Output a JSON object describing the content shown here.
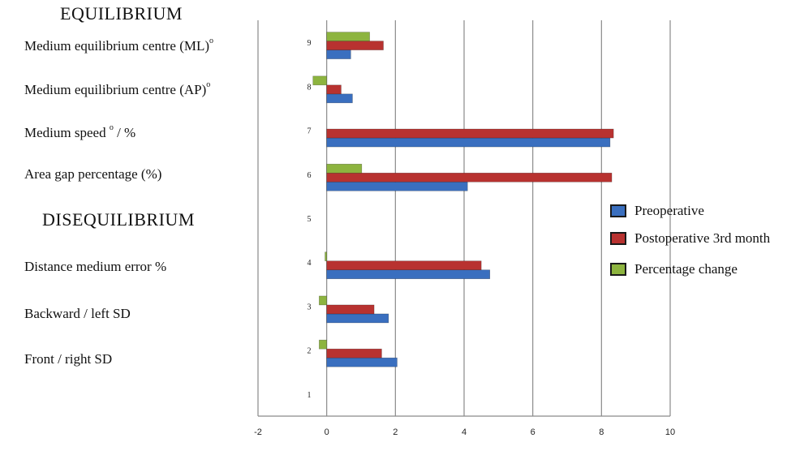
{
  "headings": {
    "equilibrium": "EQUILIBRIUM",
    "disequilibrium": "DISEQUILIBRIUM"
  },
  "row_labels": [
    {
      "text": "Medium equilibrium centre (ML)",
      "sup": "o"
    },
    {
      "text": "Medium equilibrium centre  (AP)",
      "sup": "o"
    },
    {
      "text": "Medium speed ",
      "sup": "o",
      "suffix": " / %"
    },
    {
      "text": "Area gap percentage (%)"
    },
    {
      "text": "Distance medium error %"
    },
    {
      "text": "Backward / left SD"
    },
    {
      "text": "Front / right SD"
    }
  ],
  "legend": [
    {
      "label": "Preoperative",
      "color": "#3a6fbf"
    },
    {
      "label": "Postoperative 3rd month",
      "color": "#b83230"
    },
    {
      "label": "Percentage change",
      "color": "#8db43f"
    }
  ],
  "chart_data": {
    "type": "bar",
    "orientation": "horizontal",
    "categories": [
      "1",
      "2",
      "3",
      "4",
      "5",
      "6",
      "7",
      "8",
      "9"
    ],
    "series": [
      {
        "name": "Preoperative",
        "color": "#3a6fbf",
        "values": [
          0,
          2.05,
          1.8,
          4.75,
          0,
          4.1,
          8.25,
          0.75,
          0.7
        ]
      },
      {
        "name": "Postoperative 3rd month",
        "color": "#b83230",
        "values": [
          0,
          1.6,
          1.38,
          4.5,
          0,
          8.3,
          8.35,
          0.42,
          1.65
        ]
      },
      {
        "name": "Percentage change",
        "color": "#8db43f",
        "values": [
          0,
          -0.22,
          -0.22,
          -0.05,
          0,
          1.02,
          0,
          -0.4,
          1.25
        ]
      }
    ],
    "x_ticks": [
      "-2",
      "0",
      "2",
      "4",
      "6",
      "8",
      "10"
    ],
    "xlim": [
      -2,
      10
    ],
    "grid": true,
    "legend_position": "right"
  }
}
